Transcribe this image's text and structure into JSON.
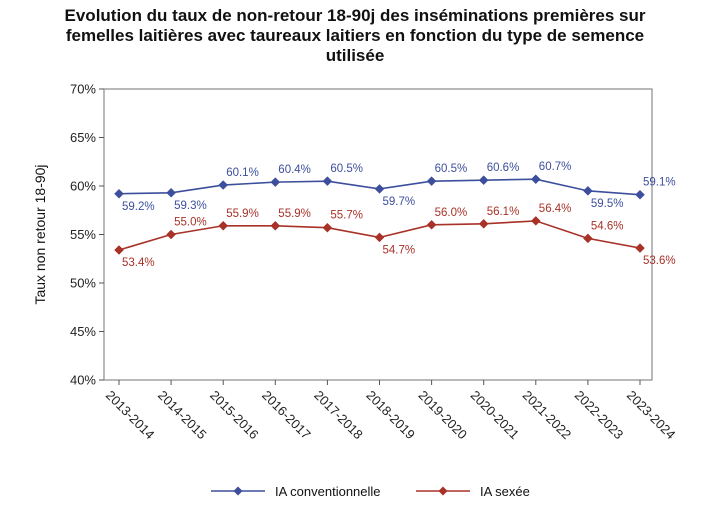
{
  "chart_data": {
    "type": "line",
    "title_lines": [
      "Evolution du taux de non-retour 18-90j des inséminations premières sur",
      "femelles laitières avec taureaux laitiers en fonction du type de semence",
      "utilisée"
    ],
    "ylabel": "Taux non retour 18-90j",
    "xlabel": "",
    "ylim": [
      40,
      70
    ],
    "yticks": [
      "40%",
      "45%",
      "50%",
      "55%",
      "60%",
      "65%",
      "70%"
    ],
    "ytick_values": [
      40,
      45,
      50,
      55,
      60,
      65,
      70
    ],
    "categories": [
      "2013-2014",
      "2014-2015",
      "2015-2016",
      "2016-2017",
      "2017-2018",
      "2018-2019",
      "2019-2020",
      "2020-2021",
      "2021-2022",
      "2022-2023",
      "2023-2024"
    ],
    "series": [
      {
        "name": "IA conventionnelle",
        "color": "#3d4f9c",
        "values": [
          59.2,
          59.3,
          60.1,
          60.4,
          60.5,
          59.7,
          60.5,
          60.6,
          60.7,
          59.5,
          59.1
        ],
        "labels": [
          "59.2%",
          "59.3%",
          "60.1%",
          "60.4%",
          "60.5%",
          "59.7%",
          "60.5%",
          "60.6%",
          "60.7%",
          "59.5%",
          "59.1%"
        ],
        "label_pos": [
          "below",
          "below",
          "above",
          "above",
          "above",
          "below",
          "above",
          "above",
          "above",
          "below",
          "above"
        ]
      },
      {
        "name": "IA sexée",
        "color": "#a83228",
        "values": [
          53.4,
          55.0,
          55.9,
          55.9,
          55.7,
          54.7,
          56.0,
          56.1,
          56.4,
          54.6,
          53.6
        ],
        "labels": [
          "53.4%",
          "55.0%",
          "55.9%",
          "55.9%",
          "55.7%",
          "54.7%",
          "56.0%",
          "56.1%",
          "56.4%",
          "54.6%",
          "53.6%"
        ],
        "label_pos": [
          "below",
          "above",
          "above",
          "above",
          "above",
          "below",
          "above",
          "above",
          "above",
          "above",
          "below"
        ]
      }
    ],
    "legend_position": "bottom",
    "grid": false
  }
}
